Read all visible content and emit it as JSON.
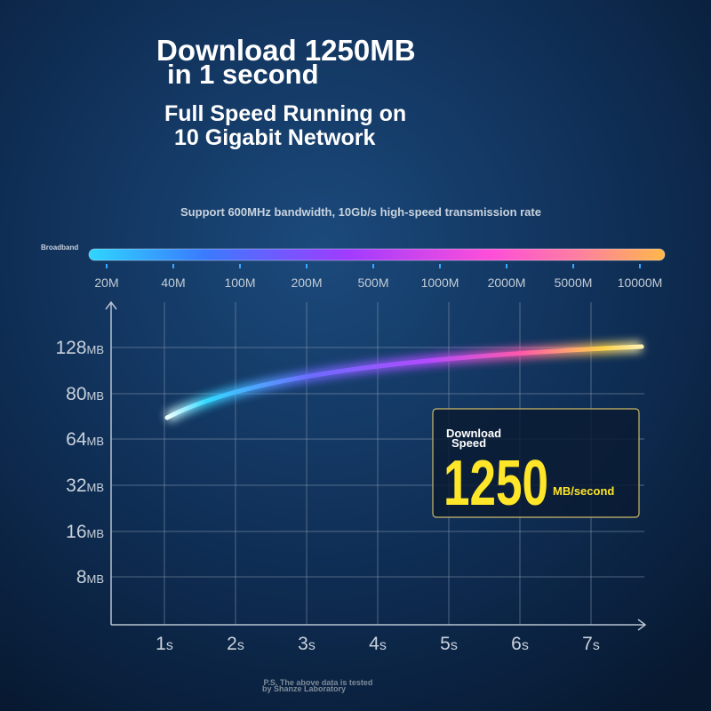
{
  "headline": {
    "line1": "Download 1250MB",
    "line2": "in 1 second"
  },
  "subhead": {
    "line1": "Full Speed Running on",
    "line2": "10 Gigabit Network"
  },
  "support_text": "Support 600MHz bandwidth, 10Gb/s high-speed transmission rate",
  "bandwidth_bar": {
    "label": "Broadband",
    "ticks": [
      "20M",
      "40M",
      "100M",
      "200M",
      "500M",
      "1000M",
      "2000M",
      "5000M",
      "10000M"
    ]
  },
  "speed_chart": {
    "y_labels": [
      {
        "number": "128",
        "unit": "MB"
      },
      {
        "number": "80",
        "unit": "MB"
      },
      {
        "number": "64",
        "unit": "MB"
      },
      {
        "number": "32",
        "unit": "MB"
      },
      {
        "number": "16",
        "unit": "MB"
      },
      {
        "number": "8",
        "unit": "MB"
      }
    ],
    "x_labels": [
      {
        "number": "1",
        "unit": "s"
      },
      {
        "number": "2",
        "unit": "s"
      },
      {
        "number": "3",
        "unit": "s"
      },
      {
        "number": "4",
        "unit": "s"
      },
      {
        "number": "5",
        "unit": "s"
      },
      {
        "number": "6",
        "unit": "s"
      },
      {
        "number": "7",
        "unit": "s"
      }
    ]
  },
  "speed_box": {
    "label_line1": "Download",
    "label_line2": "Speed",
    "value": "1250",
    "unit": "MB/second"
  },
  "footnote": {
    "line1": "P.S. The above data is tested",
    "line2": "by Shanze Laboratory"
  }
}
